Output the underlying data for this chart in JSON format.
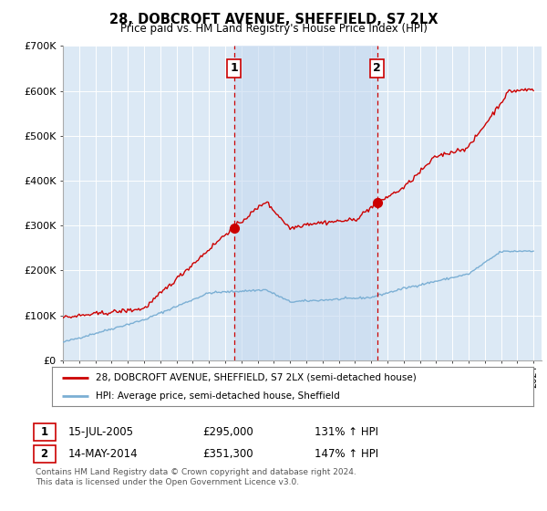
{
  "title": "28, DOBCROFT AVENUE, SHEFFIELD, S7 2LX",
  "subtitle": "Price paid vs. HM Land Registry's House Price Index (HPI)",
  "legend_line1": "28, DOBCROFT AVENUE, SHEFFIELD, S7 2LX (semi-detached house)",
  "legend_line2": "HPI: Average price, semi-detached house, Sheffield",
  "transaction1_date": "15-JUL-2005",
  "transaction1_price": "£295,000",
  "transaction1_hpi": "131% ↑ HPI",
  "transaction2_date": "14-MAY-2014",
  "transaction2_price": "£351,300",
  "transaction2_hpi": "147% ↑ HPI",
  "footnote1": "Contains HM Land Registry data © Crown copyright and database right 2024.",
  "footnote2": "This data is licensed under the Open Government Licence v3.0.",
  "line1_color": "#cc0000",
  "line2_color": "#7bafd4",
  "vline_color": "#cc0000",
  "plot_bg_color": "#dce9f5",
  "shade_color": "#c5d9ef",
  "ylim": [
    0,
    700000
  ],
  "yticks": [
    0,
    100000,
    200000,
    300000,
    400000,
    500000,
    600000,
    700000
  ],
  "ytick_labels": [
    "£0",
    "£100K",
    "£200K",
    "£300K",
    "£400K",
    "£500K",
    "£600K",
    "£700K"
  ],
  "vline1_x": 2005.54,
  "vline2_x": 2014.37,
  "marker1_x": 2005.54,
  "marker1_y": 295000,
  "marker2_x": 2014.37,
  "marker2_y": 351300,
  "xlim_start": 1995,
  "xlim_end": 2024.5
}
